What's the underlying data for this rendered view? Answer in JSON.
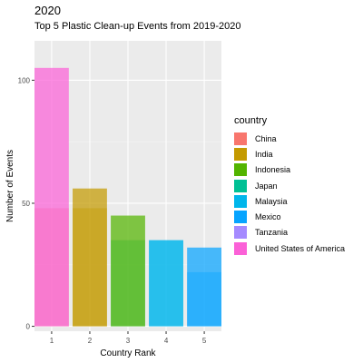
{
  "chart_data": {
    "type": "bar",
    "title": "2020",
    "subtitle": "Top 5 Plastic Clean-up Events from 2019-2020",
    "xlabel": "Country Rank",
    "ylabel": "Number of Events",
    "categories": [
      "1",
      "2",
      "3",
      "4",
      "5"
    ],
    "ylim": [
      -2,
      116
    ],
    "yticks": [
      "0",
      "50",
      "100"
    ],
    "grid": true,
    "legend_title": "country",
    "legend_position": "right",
    "series": [
      {
        "name": "China",
        "color": "#F8766D"
      },
      {
        "name": "India",
        "color": "#C49A00"
      },
      {
        "name": "Indonesia",
        "color": "#53B400"
      },
      {
        "name": "Japan",
        "color": "#00C094"
      },
      {
        "name": "Malaysia",
        "color": "#00B6EB"
      },
      {
        "name": "Mexico",
        "color": "#06A4FF"
      },
      {
        "name": "Tanzania",
        "color": "#A58AFF"
      },
      {
        "name": "United States of America",
        "color": "#FB61D7"
      }
    ],
    "bars": [
      {
        "rank": 1,
        "country": "China",
        "value": 48,
        "year": "2019"
      },
      {
        "rank": 2,
        "country": "India",
        "value": 48,
        "year": "2019"
      },
      {
        "rank": 3,
        "country": "Japan",
        "value": 35,
        "year": "2019"
      },
      {
        "rank": 4,
        "country": "Malaysia",
        "value": 35,
        "year": "2019"
      },
      {
        "rank": 5,
        "country": "Mexico",
        "value": 22,
        "year": "2019"
      },
      {
        "rank": 1,
        "country": "United States of America",
        "value": 105,
        "year": "2020"
      },
      {
        "rank": 2,
        "country": "India",
        "value": 56,
        "year": "2020"
      },
      {
        "rank": 3,
        "country": "Indonesia",
        "value": 45,
        "year": "2020"
      },
      {
        "rank": 4,
        "country": "Malaysia",
        "value": 35,
        "year": "2020"
      },
      {
        "rank": 5,
        "country": "Mexico",
        "value": 32,
        "year": "2020"
      }
    ]
  }
}
